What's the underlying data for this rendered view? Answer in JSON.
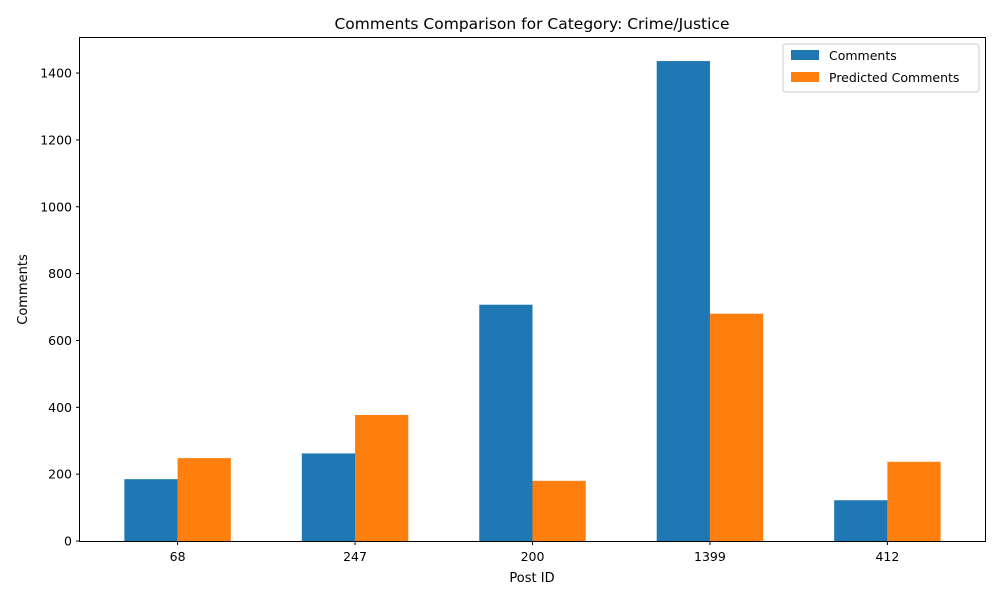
{
  "chart_data": {
    "type": "bar",
    "title": "Comments Comparison for Category: Crime/Justice",
    "xlabel": "Post ID",
    "ylabel": "Comments",
    "categories": [
      "68",
      "247",
      "200",
      "1399",
      "412"
    ],
    "series": [
      {
        "name": "Comments",
        "values": [
          185,
          262,
          707,
          1436,
          122
        ],
        "color": "#1f77b4"
      },
      {
        "name": "Predicted Comments",
        "values": [
          248,
          377,
          180,
          680,
          237
        ],
        "color": "#ff7f0e"
      }
    ],
    "ylim": [
      0,
      1508
    ],
    "yticks": [
      0,
      200,
      400,
      600,
      800,
      1000,
      1200,
      1400
    ],
    "grid": false,
    "legend_position": "top-right"
  }
}
